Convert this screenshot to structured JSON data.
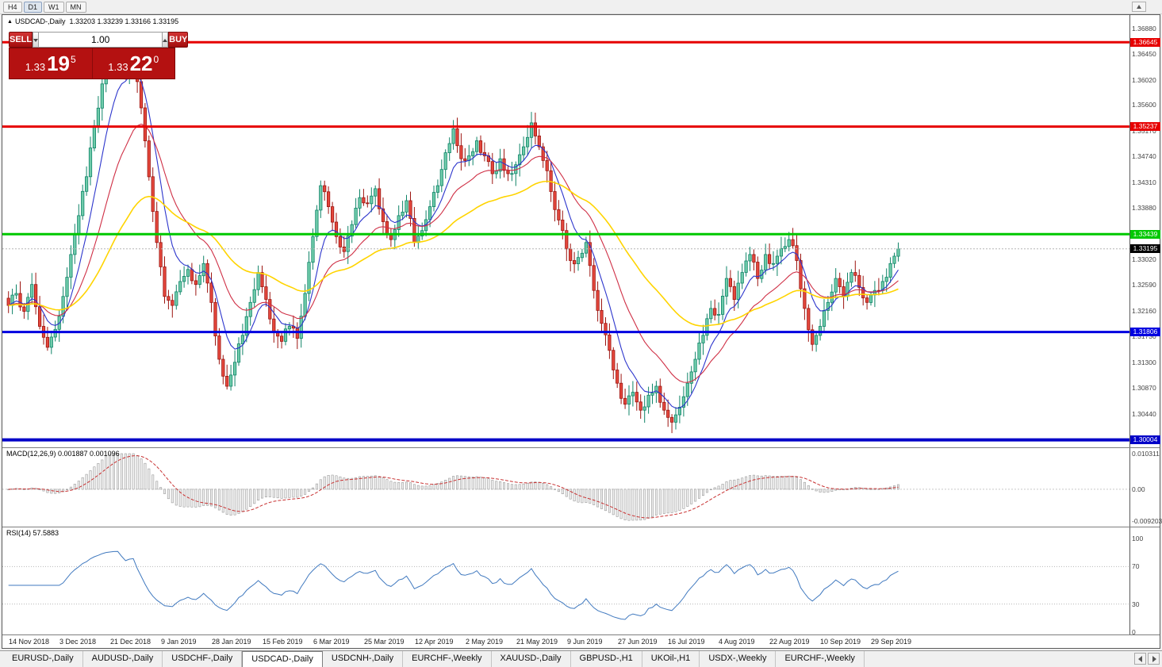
{
  "toolbar": {
    "timeframes": [
      "H4",
      "D1",
      "W1",
      "MN"
    ],
    "active_timeframe": "D1"
  },
  "chart": {
    "title": "USDCAD-,Daily",
    "ohlc_text": "1.33203 1.33239 1.33166 1.33195",
    "trade_panel": {
      "sell_label": "SELL",
      "buy_label": "BUY",
      "volume": "1.00",
      "sell_price_prefix": "1.33",
      "sell_price_pips": "19",
      "sell_price_sup": "5",
      "buy_price_prefix": "1.33",
      "buy_price_pips": "22",
      "buy_price_sup": "0"
    },
    "levels": [
      {
        "price": 1.36645,
        "label": "1.36645",
        "color": "#e60000",
        "width": 3
      },
      {
        "price": 1.35237,
        "label": "1.35237",
        "color": "#e60000",
        "width": 3
      },
      {
        "price": 1.33439,
        "label": "1.33439",
        "color": "#00c800",
        "width": 3
      },
      {
        "price": 1.31806,
        "label": "1.31806",
        "color": "#0000e0",
        "width": 3
      },
      {
        "price": 1.30004,
        "label": "1.30004",
        "color": "#0000c8",
        "width": 4
      }
    ],
    "current_price": {
      "value": 1.33195,
      "label": "1.33195"
    },
    "y_ticks": [
      "1.36880",
      "1.36450",
      "1.36020",
      "1.35600",
      "1.35170",
      "1.34740",
      "1.34310",
      "1.33880",
      "1.33450",
      "1.33020",
      "1.32590",
      "1.32160",
      "1.31730",
      "1.31300",
      "1.30870",
      "1.30440"
    ],
    "x_labels": [
      "14 Nov 2018",
      "3 Dec 2018",
      "21 Dec 2018",
      "9 Jan 2019",
      "28 Jan 2019",
      "15 Feb 2019",
      "6 Mar 2019",
      "25 Mar 2019",
      "12 Apr 2019",
      "2 May 2019",
      "21 May 2019",
      "9 Jun 2019",
      "27 Jun 2019",
      "16 Jul 2019",
      "4 Aug 2019",
      "22 Aug 2019",
      "10 Sep 2019",
      "29 Sep 2019"
    ],
    "colors": {
      "up_fill": "#6fcbaa",
      "up_border": "#0f8468",
      "down_fill": "#e4473c",
      "down_border": "#9c1510",
      "macd_signal": "#c83232",
      "rsi_line": "#4079bf"
    }
  },
  "macd": {
    "label": "MACD(12,26,9) 0.001887 0.001096",
    "y_ticks": [
      "0.010311",
      "0.00",
      "-0.009203"
    ],
    "max": 0.010311,
    "min": -0.009203
  },
  "rsi": {
    "label": "RSI(14) 57.5883",
    "y_ticks": [
      "100",
      "70",
      "30",
      "0"
    ],
    "levels": [
      70,
      30
    ]
  },
  "tabs": {
    "items": [
      "EURUSD-,Daily",
      "AUDUSD-,Daily",
      "USDCHF-,Daily",
      "USDCAD-,Daily",
      "USDCNH-,Daily",
      "EURCHF-,Weekly",
      "XAUUSD-,Daily",
      "GBPUSD-,H1",
      "UKOil-,H1",
      "USDX-,Weekly",
      "EURCHF-,Weekly"
    ],
    "active_index": 3
  },
  "chart_data": {
    "type": "candlestick",
    "symbol": "USDCAD",
    "timeframe": "Daily",
    "visible_ohlc": {
      "open": 1.33203,
      "high": 1.33239,
      "low": 1.33166,
      "close": 1.33195
    },
    "bid": 1.33195,
    "ask": 1.3322,
    "y_axis": {
      "min": 1.2988,
      "max": 1.371,
      "ticks": [
        "1.36880",
        "1.36450",
        "1.36020",
        "1.35600",
        "1.35170",
        "1.34740",
        "1.34310",
        "1.33880",
        "1.33450",
        "1.33020",
        "1.32590",
        "1.32160",
        "1.31730",
        "1.31300",
        "1.30870",
        "1.30440"
      ]
    },
    "x_axis": {
      "labels": [
        "14 Nov 2018",
        "3 Dec 2018",
        "21 Dec 2018",
        "9 Jan 2019",
        "28 Jan 2019",
        "15 Feb 2019",
        "6 Mar 2019",
        "25 Mar 2019",
        "12 Apr 2019",
        "2 May 2019",
        "21 May 2019",
        "9 Jun 2019",
        "27 Jun 2019",
        "16 Jul 2019",
        "4 Aug 2019",
        "22 Aug 2019",
        "10 Sep 2019",
        "29 Sep 2019"
      ],
      "bars_per_label": 13
    },
    "keypoint_step": 2,
    "close_keypoints": [
      1.3225,
      1.3245,
      1.3215,
      1.326,
      1.319,
      1.3155,
      1.3185,
      1.324,
      1.331,
      1.3375,
      1.344,
      1.3525,
      1.3595,
      1.364,
      1.3655,
      1.3615,
      1.3645,
      1.3555,
      1.344,
      1.333,
      1.324,
      1.3225,
      1.3265,
      1.3285,
      1.326,
      1.3295,
      1.323,
      1.3135,
      1.309,
      1.313,
      1.3175,
      1.323,
      1.328,
      1.3235,
      1.318,
      1.3165,
      1.319,
      1.317,
      1.3245,
      1.334,
      1.3425,
      1.339,
      1.334,
      1.3315,
      1.336,
      1.3405,
      1.3395,
      1.342,
      1.3365,
      1.3335,
      1.3375,
      1.34,
      1.333,
      1.335,
      1.339,
      1.3425,
      1.348,
      1.352,
      1.347,
      1.3475,
      1.35,
      1.3475,
      1.3445,
      1.347,
      1.3445,
      1.346,
      1.349,
      1.353,
      1.349,
      1.345,
      1.3385,
      1.335,
      1.33,
      1.3305,
      1.333,
      1.325,
      1.3195,
      1.315,
      1.3095,
      1.306,
      1.308,
      1.305,
      1.3075,
      1.309,
      1.305,
      1.303,
      1.3055,
      1.3095,
      1.3135,
      1.3175,
      1.322,
      1.321,
      1.327,
      1.3235,
      1.328,
      1.331,
      1.327,
      1.331,
      1.3295,
      1.332,
      1.3335,
      1.33,
      1.322,
      1.316,
      1.319,
      1.323,
      1.327,
      1.324,
      1.328,
      1.3255,
      1.323,
      1.325,
      1.3265,
      1.3295,
      1.33195
    ],
    "horizontal_levels": [
      1.36645,
      1.35237,
      1.33439,
      1.31806,
      1.30004
    ],
    "moving_averages": [
      {
        "period": 8,
        "color": "#2c35cc",
        "width": 1.1
      },
      {
        "period": 20,
        "color": "#cf2f45",
        "width": 1.1
      },
      {
        "period": 50,
        "color": "#ffd400",
        "width": 1.6
      }
    ],
    "indicators": [
      {
        "name": "MACD",
        "params": [
          12,
          26,
          9
        ],
        "current_values": [
          0.001887,
          0.001096
        ],
        "axis_range": [
          -0.009203,
          0.010311
        ]
      },
      {
        "name": "RSI",
        "params": [
          14
        ],
        "current_value": 57.5883,
        "levels": [
          70,
          30
        ],
        "axis_range": [
          0,
          100
        ]
      }
    ]
  }
}
